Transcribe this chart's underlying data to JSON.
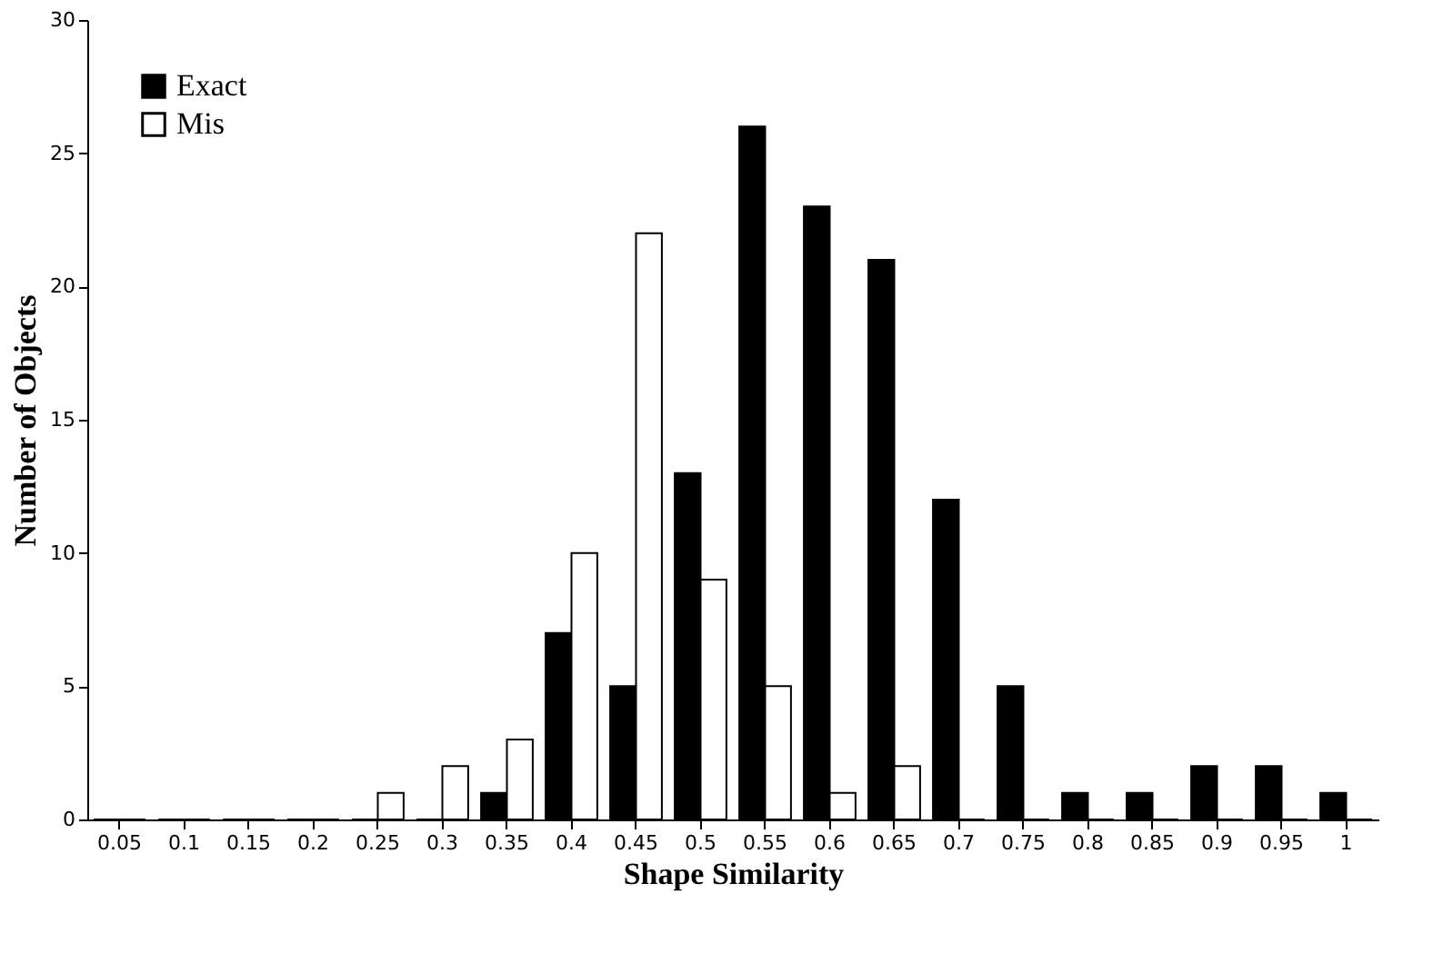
{
  "chart_data": {
    "type": "bar",
    "xlabel": "Shape Similarity",
    "ylabel": "Number of Objects",
    "categories": [
      "0.05",
      "0.1",
      "0.15",
      "0.2",
      "0.25",
      "0.3",
      "0.35",
      "0.4",
      "0.45",
      "0.5",
      "0.55",
      "0.6",
      "0.65",
      "0.7",
      "0.75",
      "0.8",
      "0.85",
      "0.9",
      "0.95",
      "1"
    ],
    "series": [
      {
        "name": "Exact",
        "color": "#000000",
        "values": [
          0,
          0,
          0,
          0,
          0,
          0,
          1,
          7,
          5,
          13,
          26,
          23,
          21,
          12,
          5,
          1,
          1,
          2,
          2,
          1
        ]
      },
      {
        "name": "Mis",
        "color": "#ffffff",
        "values": [
          0,
          0,
          0,
          0,
          1,
          2,
          3,
          10,
          22,
          9,
          5,
          1,
          2,
          0,
          0,
          0,
          0,
          0,
          0,
          0
        ]
      }
    ],
    "ylim": [
      0,
      30
    ],
    "yticks": [
      0,
      5,
      10,
      15,
      20,
      25,
      30
    ],
    "grid": false,
    "legend": "top left"
  }
}
